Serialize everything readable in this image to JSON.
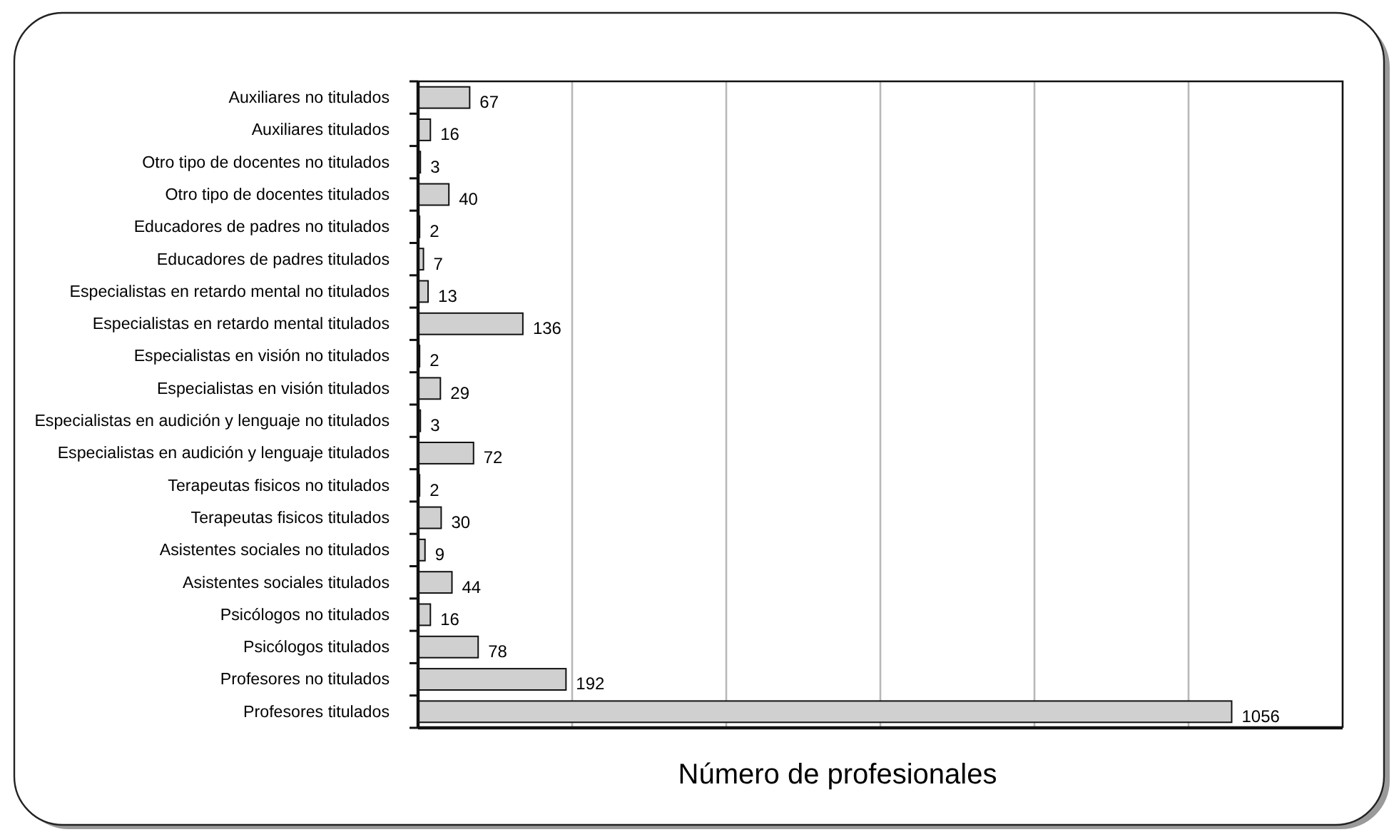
{
  "chart_data": {
    "type": "bar",
    "orientation": "horizontal",
    "categories": [
      "Auxiliares no titulados",
      "Auxiliares titulados",
      "Otro tipo de docentes no titulados",
      "Otro tipo de docentes titulados",
      "Educadores de padres no titulados",
      "Educadores de padres titulados",
      "Especialistas en retardo mental no titulados",
      "Especialistas en retardo mental titulados",
      "Especialistas en visión no titulados",
      "Especialistas en visión titulados",
      "Especialistas en audición y lenguaje no titulados",
      "Especialistas en audición y lenguaje titulados",
      "Terapeutas fisicos no titulados",
      "Terapeutas fisicos titulados",
      "Asistentes sociales no titulados",
      "Asistentes sociales titulados",
      "Psicólogos no titulados",
      "Psicólogos titulados",
      "Profesores no titulados",
      "Profesores titulados"
    ],
    "values": [
      67,
      16,
      3,
      40,
      2,
      7,
      13,
      136,
      2,
      29,
      3,
      72,
      2,
      30,
      9,
      44,
      16,
      78,
      192,
      1056
    ],
    "color": "#d0d0d0",
    "xlim": [
      0,
      1200
    ],
    "xticks": [
      {
        "value": 200,
        "label": null
      },
      {
        "value": 400,
        "label": null
      },
      {
        "value": 600,
        "label": null
      },
      {
        "value": 800,
        "label": null
      },
      {
        "value": 1000,
        "label": null
      }
    ],
    "xlabel": "Número de profesionales",
    "grid": "x",
    "tick_labels": "y",
    "data_labels": true
  }
}
